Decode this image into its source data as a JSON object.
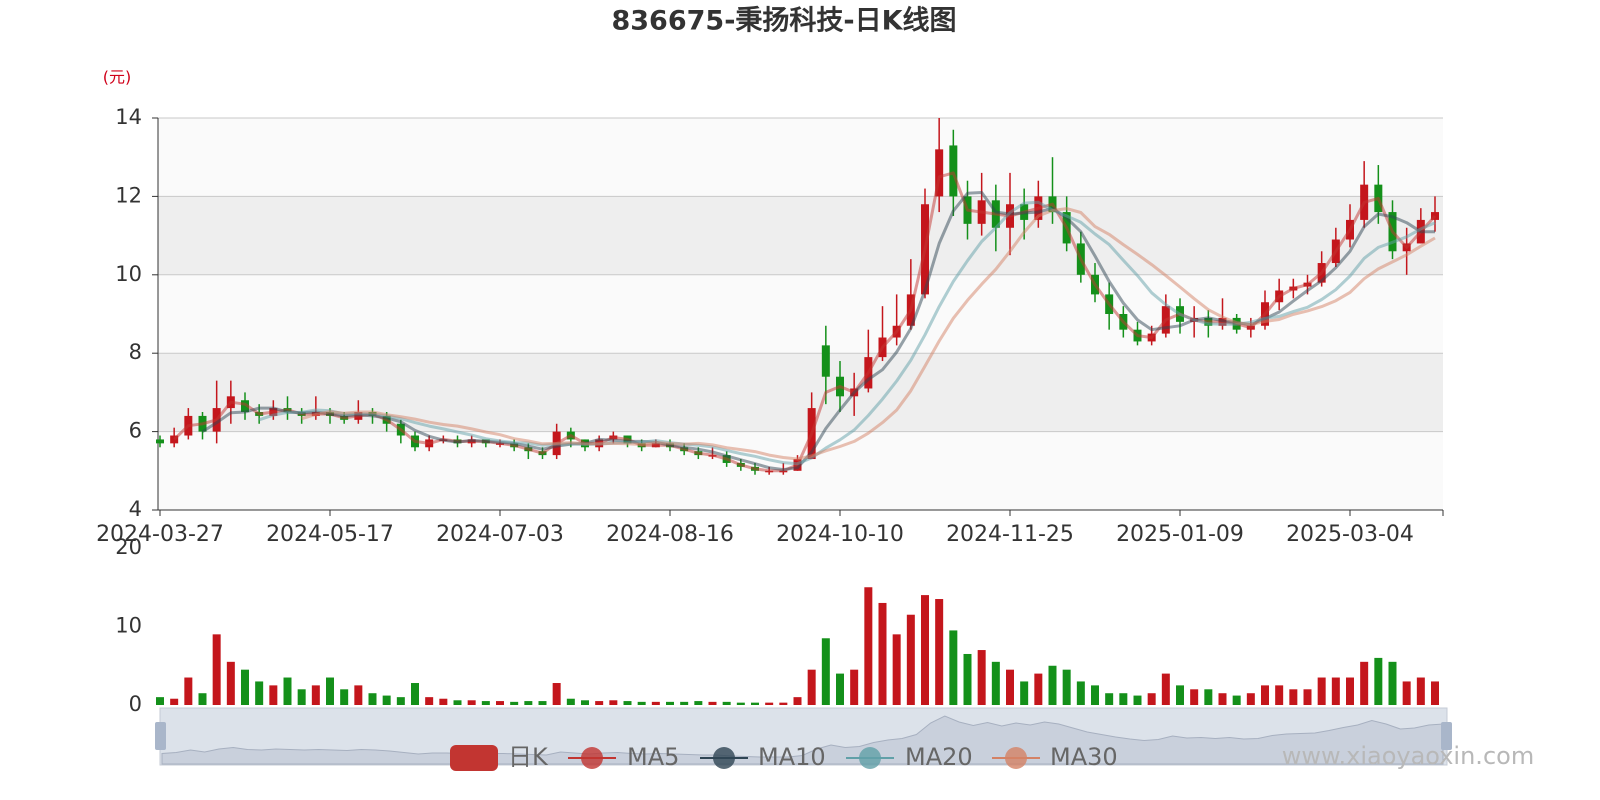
{
  "chart_data": {
    "type": "candlestick",
    "title": "836675-秉扬科技-日K线图",
    "y_unit_label": "(元)",
    "watermark": "www.xiaoyaoxin.com",
    "up_color": "#c4161c",
    "down_color": "#14901a",
    "split_area": true,
    "grid": true,
    "ylim": [
      4,
      14
    ],
    "yticks": [
      4,
      6,
      8,
      10,
      12,
      14
    ],
    "x": [
      "2024-03-27",
      null,
      null,
      null,
      null,
      null,
      null,
      null,
      null,
      null,
      null,
      null,
      "2024-05-17",
      null,
      null,
      null,
      null,
      null,
      null,
      null,
      null,
      null,
      null,
      null,
      "2024-07-03",
      null,
      null,
      null,
      null,
      null,
      null,
      null,
      null,
      null,
      null,
      null,
      "2024-08-16",
      null,
      null,
      null,
      null,
      null,
      null,
      null,
      null,
      null,
      null,
      null,
      "2024-10-10",
      null,
      null,
      null,
      null,
      null,
      null,
      null,
      null,
      null,
      null,
      null,
      "2024-11-25",
      null,
      null,
      null,
      null,
      null,
      null,
      null,
      null,
      null,
      null,
      null,
      "2025-01-09",
      null,
      null,
      null,
      null,
      null,
      null,
      null,
      null,
      null,
      null,
      null,
      "2025-03-04",
      null,
      null,
      null,
      null,
      null,
      null
    ],
    "series": [
      {
        "name": "日K",
        "color": "#c23531",
        "values": [
          [
            5.8,
            5.7,
            5.6,
            5.9
          ],
          [
            5.7,
            5.9,
            5.6,
            6.1
          ],
          [
            5.9,
            6.4,
            5.8,
            6.6
          ],
          [
            6.4,
            6.0,
            5.8,
            6.5
          ],
          [
            6.0,
            6.6,
            5.7,
            7.3
          ],
          [
            6.6,
            6.9,
            6.2,
            7.3
          ],
          [
            6.8,
            6.5,
            6.3,
            7.0
          ],
          [
            6.5,
            6.4,
            6.2,
            6.7
          ],
          [
            6.4,
            6.6,
            6.3,
            6.8
          ],
          [
            6.6,
            6.5,
            6.3,
            6.9
          ],
          [
            6.5,
            6.4,
            6.2,
            6.6
          ],
          [
            6.4,
            6.5,
            6.3,
            6.9
          ],
          [
            6.5,
            6.4,
            6.2,
            6.6
          ],
          [
            6.4,
            6.3,
            6.2,
            6.5
          ],
          [
            6.3,
            6.5,
            6.2,
            6.8
          ],
          [
            6.5,
            6.4,
            6.2,
            6.6
          ],
          [
            6.4,
            6.2,
            6.0,
            6.5
          ],
          [
            6.2,
            5.9,
            5.7,
            6.3
          ],
          [
            5.9,
            5.6,
            5.5,
            6.0
          ],
          [
            5.6,
            5.8,
            5.5,
            5.9
          ],
          [
            5.8,
            5.8,
            5.7,
            5.9
          ],
          [
            5.8,
            5.7,
            5.6,
            5.9
          ],
          [
            5.7,
            5.8,
            5.6,
            5.9
          ],
          [
            5.8,
            5.7,
            5.6,
            5.8
          ],
          [
            5.7,
            5.7,
            5.6,
            5.8
          ],
          [
            5.7,
            5.6,
            5.5,
            5.8
          ],
          [
            5.6,
            5.5,
            5.3,
            5.7
          ],
          [
            5.5,
            5.4,
            5.3,
            5.6
          ],
          [
            5.4,
            6.0,
            5.3,
            6.2
          ],
          [
            6.0,
            5.8,
            5.6,
            6.1
          ],
          [
            5.8,
            5.6,
            5.5,
            5.8
          ],
          [
            5.6,
            5.8,
            5.5,
            5.9
          ],
          [
            5.8,
            5.9,
            5.7,
            6.0
          ],
          [
            5.9,
            5.7,
            5.6,
            5.9
          ],
          [
            5.7,
            5.6,
            5.5,
            5.8
          ],
          [
            5.6,
            5.7,
            5.6,
            5.8
          ],
          [
            5.7,
            5.6,
            5.5,
            5.8
          ],
          [
            5.6,
            5.5,
            5.4,
            5.7
          ],
          [
            5.5,
            5.4,
            5.3,
            5.6
          ],
          [
            5.4,
            5.4,
            5.3,
            5.6
          ],
          [
            5.4,
            5.2,
            5.1,
            5.5
          ],
          [
            5.2,
            5.1,
            5.0,
            5.3
          ],
          [
            5.1,
            5.0,
            4.9,
            5.2
          ],
          [
            5.0,
            5.0,
            4.9,
            5.1
          ],
          [
            5.0,
            5.0,
            4.9,
            5.2
          ],
          [
            5.0,
            5.3,
            5.0,
            5.4
          ],
          [
            5.3,
            6.6,
            5.3,
            7.0
          ],
          [
            8.2,
            7.4,
            6.7,
            8.7
          ],
          [
            7.4,
            6.9,
            6.5,
            7.8
          ],
          [
            6.9,
            7.1,
            6.4,
            7.5
          ],
          [
            7.1,
            7.9,
            7.0,
            8.6
          ],
          [
            7.9,
            8.4,
            7.8,
            9.2
          ],
          [
            8.4,
            8.7,
            8.2,
            9.5
          ],
          [
            8.7,
            9.5,
            8.6,
            10.4
          ],
          [
            9.5,
            11.8,
            9.4,
            12.2
          ],
          [
            12.0,
            13.2,
            11.6,
            14.0
          ],
          [
            13.3,
            12.0,
            11.5,
            13.7
          ],
          [
            12.0,
            11.3,
            10.9,
            12.4
          ],
          [
            11.3,
            11.9,
            11.0,
            12.6
          ],
          [
            11.9,
            11.2,
            10.6,
            12.3
          ],
          [
            11.2,
            11.8,
            10.5,
            12.6
          ],
          [
            11.8,
            11.4,
            10.9,
            12.2
          ],
          [
            11.4,
            12.0,
            11.2,
            12.4
          ],
          [
            12.0,
            11.6,
            11.3,
            13.0
          ],
          [
            11.6,
            10.8,
            10.6,
            12.0
          ],
          [
            10.8,
            10.0,
            9.8,
            11.1
          ],
          [
            10.0,
            9.5,
            9.3,
            10.3
          ],
          [
            9.5,
            9.0,
            8.6,
            9.8
          ],
          [
            9.0,
            8.6,
            8.4,
            9.2
          ],
          [
            8.6,
            8.3,
            8.2,
            8.8
          ],
          [
            8.3,
            8.5,
            8.2,
            8.7
          ],
          [
            8.5,
            9.2,
            8.4,
            9.5
          ],
          [
            9.2,
            8.8,
            8.5,
            9.4
          ],
          [
            8.8,
            8.9,
            8.4,
            9.2
          ],
          [
            8.9,
            8.7,
            8.4,
            9.1
          ],
          [
            8.7,
            8.9,
            8.6,
            9.4
          ],
          [
            8.9,
            8.6,
            8.5,
            9.0
          ],
          [
            8.6,
            8.7,
            8.4,
            8.9
          ],
          [
            8.7,
            9.3,
            8.6,
            9.6
          ],
          [
            9.3,
            9.6,
            9.1,
            9.9
          ],
          [
            9.6,
            9.7,
            9.4,
            9.9
          ],
          [
            9.7,
            9.8,
            9.5,
            10.0
          ],
          [
            9.8,
            10.3,
            9.7,
            10.6
          ],
          [
            10.3,
            10.9,
            10.2,
            11.2
          ],
          [
            10.9,
            11.4,
            10.7,
            11.8
          ],
          [
            11.4,
            12.3,
            11.2,
            12.9
          ],
          [
            12.3,
            11.6,
            11.3,
            12.8
          ],
          [
            11.6,
            10.6,
            10.4,
            11.9
          ],
          [
            10.6,
            10.8,
            10.0,
            11.2
          ],
          [
            10.8,
            11.4,
            10.8,
            11.7
          ],
          [
            11.4,
            11.6,
            11.1,
            12.0
          ]
        ]
      },
      {
        "name": "MA5",
        "color": "#c23531",
        "values": [
          null,
          5.8,
          6.15,
          6.2,
          6.3,
          6.75,
          6.7,
          6.45,
          6.5,
          6.55,
          6.45,
          6.45,
          6.45,
          6.35,
          6.4,
          6.45,
          6.3,
          6.05,
          5.75,
          5.7,
          5.8,
          5.75,
          5.75,
          5.75,
          5.7,
          5.65,
          5.55,
          5.45,
          5.7,
          5.9,
          5.7,
          5.7,
          5.85,
          5.8,
          5.65,
          5.65,
          5.65,
          5.55,
          5.45,
          5.4,
          5.3,
          5.15,
          5.05,
          5.0,
          5.0,
          5.15,
          5.95,
          7.0,
          7.15,
          7.0,
          7.5,
          8.15,
          8.55,
          9.1,
          10.65,
          12.5,
          12.6,
          11.65,
          11.6,
          11.55,
          11.5,
          11.6,
          11.7,
          11.8,
          11.2,
          10.4,
          9.75,
          9.25,
          8.8,
          8.45,
          8.4,
          8.85,
          9.0,
          8.85,
          8.8,
          8.8,
          8.75,
          8.65,
          9.0,
          9.45,
          9.65,
          9.75,
          10.05,
          10.6,
          11.15,
          11.85,
          11.95,
          11.1,
          10.7,
          11.1,
          11.5
        ]
      },
      {
        "name": "MA10",
        "color": "#2f4554",
        "values": [
          null,
          null,
          null,
          6.0,
          6.23,
          6.48,
          6.5,
          6.6,
          6.6,
          6.5,
          6.48,
          6.5,
          6.45,
          6.4,
          6.43,
          6.4,
          6.35,
          6.25,
          6.03,
          5.88,
          5.78,
          5.73,
          5.78,
          5.75,
          5.73,
          5.7,
          5.63,
          5.55,
          5.63,
          5.68,
          5.7,
          5.8,
          5.78,
          5.75,
          5.75,
          5.73,
          5.65,
          5.6,
          5.55,
          5.48,
          5.38,
          5.28,
          5.18,
          5.08,
          5.03,
          5.08,
          5.48,
          6.08,
          6.55,
          7.0,
          7.33,
          7.58,
          8.03,
          8.63,
          9.6,
          10.8,
          11.63,
          12.08,
          12.1,
          11.6,
          11.55,
          11.58,
          11.6,
          11.7,
          11.45,
          11.1,
          10.48,
          9.83,
          9.28,
          8.85,
          8.6,
          8.65,
          8.7,
          8.85,
          8.9,
          8.83,
          8.78,
          8.73,
          8.88,
          9.05,
          9.33,
          9.6,
          9.85,
          10.18,
          10.6,
          11.23,
          11.55,
          11.48,
          11.33,
          11.1,
          11.1
        ]
      },
      {
        "name": "MA20",
        "color": "#61a0a8",
        "values": [
          null,
          null,
          null,
          null,
          null,
          null,
          null,
          6.3,
          6.42,
          6.49,
          6.49,
          6.55,
          6.53,
          6.45,
          6.46,
          6.45,
          6.4,
          6.33,
          6.23,
          6.14,
          6.07,
          5.99,
          5.91,
          5.82,
          5.76,
          5.72,
          5.71,
          5.65,
          5.68,
          5.69,
          5.67,
          5.68,
          5.71,
          5.72,
          5.73,
          5.77,
          5.72,
          5.68,
          5.65,
          5.61,
          5.52,
          5.44,
          5.37,
          5.28,
          5.21,
          5.18,
          5.33,
          5.58,
          5.79,
          6.04,
          6.41,
          6.83,
          7.29,
          7.82,
          8.47,
          9.19,
          9.83,
          10.36,
          10.85,
          11.2,
          11.59,
          11.83,
          11.85,
          11.65,
          11.5,
          11.34,
          11.04,
          10.77,
          10.37,
          9.98,
          9.54,
          9.24,
          8.99,
          8.85,
          8.75,
          8.74,
          8.74,
          8.79,
          8.89,
          8.94,
          9.06,
          9.17,
          9.37,
          9.62,
          9.97,
          10.42,
          10.7,
          10.83,
          10.97,
          11.17,
          11.33
        ]
      },
      {
        "name": "MA30",
        "color": "#d48265",
        "values": [
          null,
          null,
          null,
          null,
          null,
          null,
          null,
          null,
          null,
          null,
          6.33,
          6.44,
          6.51,
          6.47,
          6.5,
          6.5,
          6.43,
          6.38,
          6.32,
          6.24,
          6.18,
          6.14,
          6.07,
          5.99,
          5.92,
          5.82,
          5.76,
          5.69,
          5.7,
          5.72,
          5.69,
          5.69,
          5.7,
          5.69,
          5.67,
          5.72,
          5.7,
          5.68,
          5.7,
          5.66,
          5.59,
          5.54,
          5.49,
          5.4,
          5.34,
          5.3,
          5.38,
          5.51,
          5.62,
          5.75,
          5.96,
          6.23,
          6.55,
          7.04,
          7.67,
          8.31,
          8.89,
          9.35,
          9.76,
          10.14,
          10.6,
          11.09,
          11.5,
          11.64,
          11.69,
          11.59,
          11.23,
          11.03,
          10.77,
          10.52,
          10.26,
          9.98,
          9.69,
          9.39,
          9.11,
          8.92,
          8.78,
          8.73,
          8.81,
          8.86,
          8.99,
          9.08,
          9.19,
          9.34,
          9.55,
          9.9,
          10.15,
          10.33,
          10.51,
          10.73,
          10.94
        ]
      }
    ],
    "volume": {
      "ylim": [
        0,
        20
      ],
      "yticks": [
        0,
        10,
        20
      ],
      "values": [
        1.0,
        0.8,
        3.5,
        1.5,
        9.0,
        5.5,
        4.5,
        3.0,
        2.5,
        3.5,
        2.0,
        2.5,
        3.5,
        2.0,
        2.5,
        1.5,
        1.2,
        1.0,
        2.8,
        1.0,
        0.8,
        0.6,
        0.6,
        0.5,
        0.5,
        0.4,
        0.5,
        0.5,
        2.8,
        0.8,
        0.6,
        0.5,
        0.6,
        0.5,
        0.4,
        0.4,
        0.4,
        0.4,
        0.5,
        0.4,
        0.4,
        0.3,
        0.3,
        0.3,
        0.3,
        1.0,
        4.5,
        8.5,
        4.0,
        4.5,
        15.0,
        13.0,
        9.0,
        11.5,
        14.0,
        13.5,
        9.5,
        6.5,
        7.0,
        5.5,
        4.5,
        3.0,
        4.0,
        5.0,
        4.5,
        3.0,
        2.5,
        1.5,
        1.5,
        1.2,
        1.5,
        4.0,
        2.5,
        2.0,
        2.0,
        1.5,
        1.2,
        1.5,
        2.5,
        2.5,
        2.0,
        2.0,
        3.5,
        3.5,
        3.5,
        5.5,
        6.0,
        5.5,
        3.0,
        3.5,
        3.0
      ]
    }
  }
}
